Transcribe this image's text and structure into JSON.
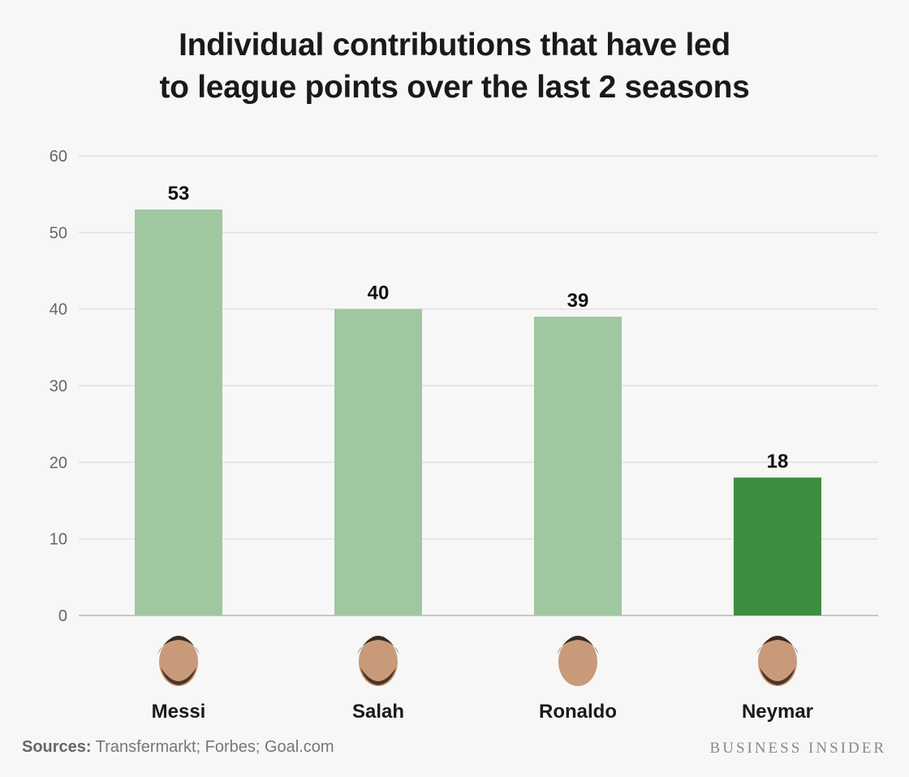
{
  "title_lines": [
    "Individual contributions that have led",
    "to league points over the last 2 seasons"
  ],
  "footer": {
    "sources_label": "Sources:",
    "sources_text": "Transfermarkt; Forbes; Goal.com",
    "brand": "BUSINESS INSIDER"
  },
  "colors": {
    "bar": "#9fc7a0",
    "highlight": "#3e8e41",
    "grid": "#e0e0e0",
    "axis": "#c8c8c8"
  },
  "chart_data": {
    "type": "bar",
    "title": "Individual contributions that have led to league points over the last 2 seasons",
    "categories": [
      "Messi",
      "Salah",
      "Ronaldo",
      "Neymar"
    ],
    "values": [
      53,
      40,
      39,
      18
    ],
    "highlight_index": 3,
    "ylim": [
      0,
      60
    ],
    "yticks": [
      0,
      10,
      20,
      30,
      40,
      50,
      60
    ],
    "xlabel": "",
    "ylabel": "",
    "grid": true,
    "legend": "none",
    "data_labels": true
  }
}
